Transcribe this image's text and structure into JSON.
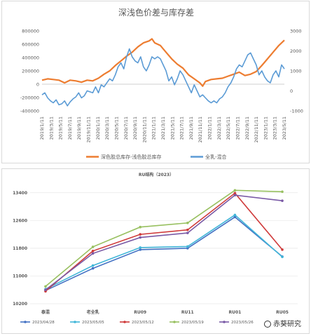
{
  "chart_data": [
    {
      "type": "line",
      "title": "深浅色价差与库存差",
      "x_tick_labels": [
        "2019/1/11",
        "2019/3/11",
        "2019/5/11",
        "2019/7/11",
        "2019/9/11",
        "2019/11/11",
        "2020/1/11",
        "2020/3/11",
        "2020/5/11",
        "2020/7/11",
        "2020/9/11",
        "2020/11/11",
        "2021/1/11",
        "2021/3/11",
        "2021/5/11",
        "2021/7/11",
        "2021/9/11",
        "2021/11/11",
        "2022/1/11",
        "2022/3/11",
        "2022/5/11",
        "2022/7/11",
        "2022/9/11",
        "2022/11/11",
        "2023/1/11",
        "2023/3/11",
        "2023/5/11"
      ],
      "y_left": {
        "ticks": [
          "-400000",
          "-200000",
          "0",
          "200000",
          "400000",
          "600000",
          "800000"
        ],
        "range": [
          -400000,
          800000
        ]
      },
      "y_right": {
        "ticks": [
          "-1000",
          "0",
          "1000",
          "2000",
          "3000"
        ],
        "range": [
          -1000,
          3000
        ]
      },
      "legend": {
        "position": "bottom"
      },
      "colors": {
        "orange": "#ed7d31",
        "blue": "#5b9bd5"
      },
      "series": [
        {
          "name": "深色胶总库存-浅色胶总库存",
          "axis": "left",
          "color": "#ed7d31",
          "values": [
            [
              0,
              60000
            ],
            [
              2,
              80000
            ],
            [
              4,
              70000
            ],
            [
              6,
              60000
            ],
            [
              8,
              20000
            ],
            [
              10,
              60000
            ],
            [
              12,
              50000
            ],
            [
              14,
              30000
            ],
            [
              16,
              60000
            ],
            [
              18,
              50000
            ],
            [
              20,
              90000
            ],
            [
              22,
              150000
            ],
            [
              24,
              200000
            ],
            [
              26,
              280000
            ],
            [
              28,
              350000
            ],
            [
              30,
              420000
            ],
            [
              32,
              480000
            ],
            [
              34,
              560000
            ],
            [
              36,
              620000
            ],
            [
              38,
              650000
            ],
            [
              39,
              680000
            ],
            [
              40,
              620000
            ],
            [
              42,
              580000
            ],
            [
              44,
              480000
            ],
            [
              46,
              380000
            ],
            [
              48,
              300000
            ],
            [
              50,
              240000
            ],
            [
              52,
              140000
            ],
            [
              54,
              80000
            ],
            [
              56,
              20000
            ],
            [
              57,
              -30000
            ],
            [
              58,
              40000
            ],
            [
              60,
              70000
            ],
            [
              62,
              80000
            ],
            [
              64,
              90000
            ],
            [
              66,
              120000
            ],
            [
              68,
              150000
            ],
            [
              70,
              180000
            ],
            [
              72,
              130000
            ],
            [
              74,
              150000
            ],
            [
              76,
              190000
            ],
            [
              78,
              280000
            ],
            [
              80,
              380000
            ],
            [
              82,
              480000
            ],
            [
              84,
              580000
            ],
            [
              86,
              660000
            ]
          ]
        },
        {
          "name": "全乳-混合",
          "axis": "right",
          "color": "#5b9bd5",
          "values": [
            [
              0,
              -200
            ],
            [
              1,
              -100
            ],
            [
              2,
              -350
            ],
            [
              3,
              -500
            ],
            [
              4,
              -600
            ],
            [
              5,
              -450
            ],
            [
              6,
              -700
            ],
            [
              7,
              -650
            ],
            [
              8,
              -500
            ],
            [
              9,
              -750
            ],
            [
              10,
              -550
            ],
            [
              11,
              -400
            ],
            [
              12,
              -300
            ],
            [
              13,
              -100
            ],
            [
              14,
              -350
            ],
            [
              15,
              -250
            ],
            [
              16,
              0
            ],
            [
              17,
              -50
            ],
            [
              18,
              -100
            ],
            [
              19,
              200
            ],
            [
              20,
              -100
            ],
            [
              21,
              300
            ],
            [
              22,
              200
            ],
            [
              23,
              400
            ],
            [
              24,
              600
            ],
            [
              25,
              500
            ],
            [
              26,
              800
            ],
            [
              27,
              1200
            ],
            [
              28,
              1400
            ],
            [
              29,
              1100
            ],
            [
              30,
              1700
            ],
            [
              31,
              2100
            ],
            [
              32,
              1700
            ],
            [
              33,
              1500
            ],
            [
              34,
              1400
            ],
            [
              35,
              1700
            ],
            [
              36,
              1200
            ],
            [
              37,
              1000
            ],
            [
              38,
              1300
            ],
            [
              39,
              1700
            ],
            [
              40,
              1600
            ],
            [
              41,
              1700
            ],
            [
              42,
              1600
            ],
            [
              43,
              1300
            ],
            [
              44,
              1000
            ],
            [
              45,
              500
            ],
            [
              46,
              700
            ],
            [
              47,
              300
            ],
            [
              48,
              600
            ],
            [
              49,
              1000
            ],
            [
              50,
              800
            ],
            [
              51,
              500
            ],
            [
              52,
              200
            ],
            [
              53,
              -100
            ],
            [
              54,
              300
            ],
            [
              55,
              0
            ],
            [
              56,
              -300
            ],
            [
              57,
              -200
            ],
            [
              58,
              -350
            ],
            [
              59,
              -500
            ],
            [
              60,
              -600
            ],
            [
              61,
              -500
            ],
            [
              62,
              -600
            ],
            [
              63,
              -400
            ],
            [
              64,
              -300
            ],
            [
              65,
              -100
            ],
            [
              66,
              200
            ],
            [
              67,
              400
            ],
            [
              68,
              700
            ],
            [
              69,
              1100
            ],
            [
              70,
              1300
            ],
            [
              71,
              1200
            ],
            [
              72,
              1500
            ],
            [
              73,
              1800
            ],
            [
              74,
              1900
            ],
            [
              75,
              1600
            ],
            [
              76,
              1300
            ],
            [
              77,
              800
            ],
            [
              78,
              1000
            ],
            [
              79,
              700
            ],
            [
              80,
              500
            ],
            [
              81,
              400
            ],
            [
              82,
              800
            ],
            [
              83,
              1000
            ],
            [
              84,
              700
            ],
            [
              85,
              1300
            ],
            [
              86,
              1100
            ]
          ]
        }
      ]
    },
    {
      "type": "line",
      "title": "RU结构（2023）",
      "categories": [
        "泰混",
        "老全乳",
        "RU09",
        "RU11",
        "RU01",
        "RU05"
      ],
      "y_ticks": [
        "10200",
        "11000",
        "11800",
        "12600",
        "13400"
      ],
      "ylim": [
        10200,
        13800
      ],
      "legend": {
        "position": "bottom"
      },
      "series": [
        {
          "name": "2023/04/28",
          "color": "#4472c4",
          "values": [
            10580,
            11220,
            11760,
            11800,
            12700,
            11560
          ]
        },
        {
          "name": "2023/05/05",
          "color": "#41b6d8",
          "values": [
            10620,
            11300,
            11820,
            11850,
            12760,
            11550
          ]
        },
        {
          "name": "2023/05/12",
          "color": "#cf3a3a",
          "values": [
            10560,
            11720,
            12200,
            12330,
            13390,
            11760
          ]
        },
        {
          "name": "2023/05/19",
          "color": "#98c060",
          "values": [
            10700,
            11840,
            12410,
            12530,
            13470,
            13430
          ]
        },
        {
          "name": "2023/05/26",
          "color": "#7a5aa6",
          "values": [
            10600,
            11650,
            12110,
            12240,
            13330,
            13170
          ]
        }
      ]
    }
  ],
  "watermark": "赤葵研究"
}
